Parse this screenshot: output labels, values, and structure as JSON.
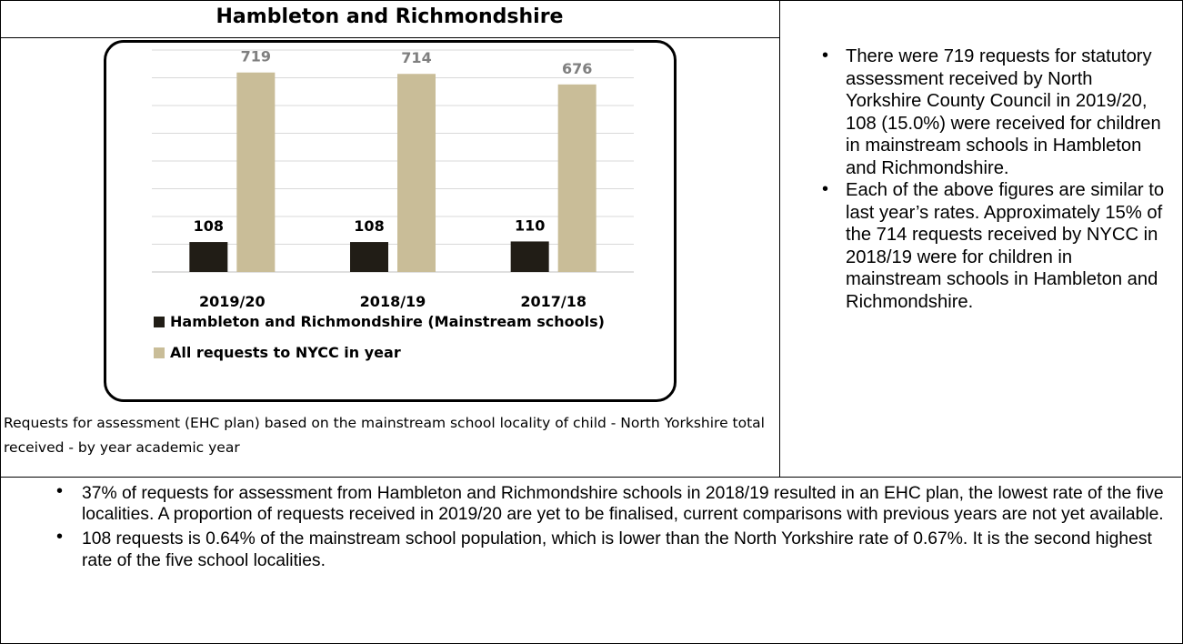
{
  "chart_data": {
    "type": "bar",
    "title": "Hambleton and Richmondshire",
    "categories": [
      "2019/20",
      "2018/19",
      "2017/18"
    ],
    "series": [
      {
        "name": "Hambleton and Richmondshire (Mainstream schools)",
        "values": [
          108,
          108,
          110
        ],
        "color": "#211d16"
      },
      {
        "name": "All requests to NYCC in year",
        "values": [
          719,
          714,
          676
        ],
        "color": "#c9bd98"
      }
    ],
    "ylim": [
      0,
      800
    ],
    "grid": true,
    "legend_position": "bottom",
    "caption": "Requests for assessment (EHC plan) based on the mainstream school locality of child -  North Yorkshire total received - by year academic year"
  },
  "side_notes": [
    "There were 719 requests for statutory assessment received by North Yorkshire County Council in 2019/20, 108 (15.0%) were received for children in mainstream schools in Hambleton and Richmondshire.",
    "Each of the above figures are similar to last year’s rates. Approximately 15% of the 714 requests received by NYCC in 2018/19 were for children in mainstream schools in Hambleton and Richmondshire."
  ],
  "bottom_notes": [
    "37% of requests for assessment from Hambleton and Richmondshire schools in 2018/19 resulted in an EHC plan, the lowest rate of the five localities. A proportion of requests received in 2019/20 are yet to be finalised, current comparisons with previous years are not yet available.",
    "108 requests is 0.64% of the mainstream school population, which is lower than the North Yorkshire rate of 0.67%. It is the second highest rate of the five school localities."
  ],
  "bullet_glyph": "•"
}
